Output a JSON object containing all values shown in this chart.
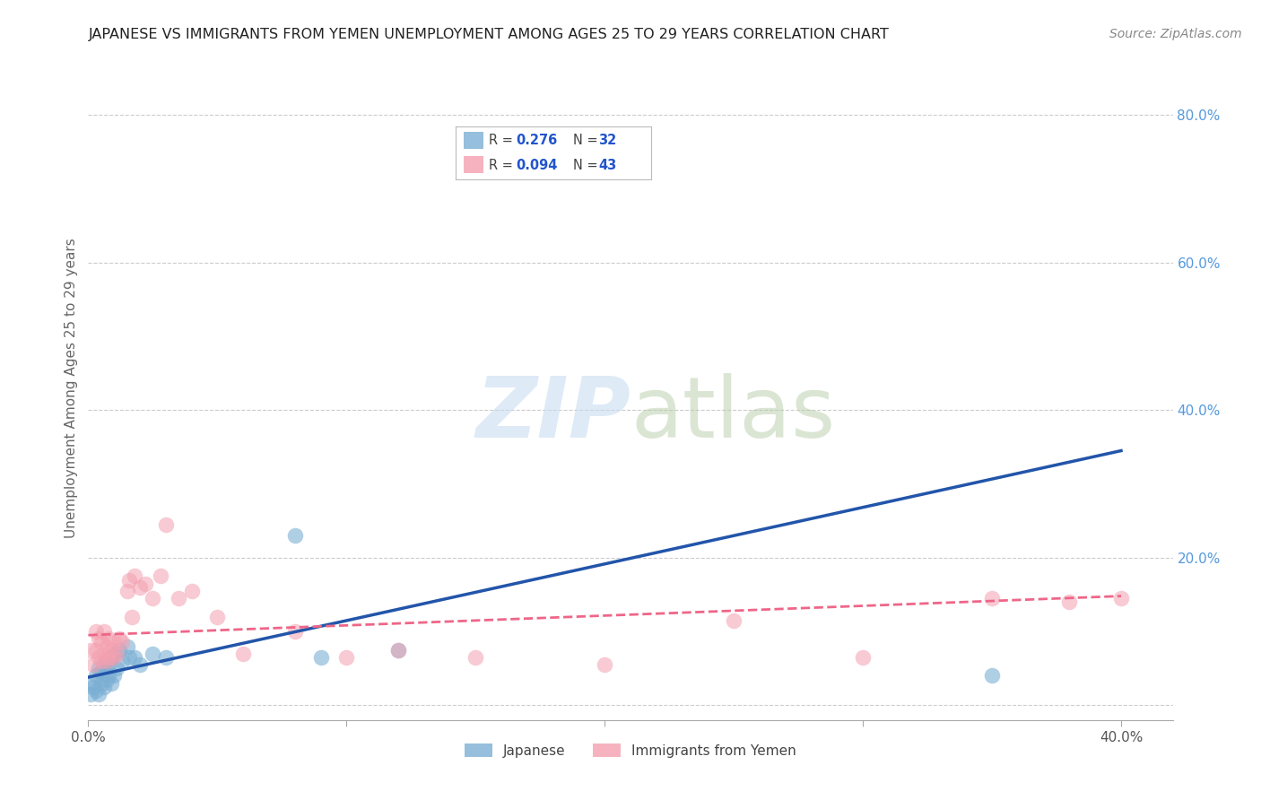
{
  "title": "JAPANESE VS IMMIGRANTS FROM YEMEN UNEMPLOYMENT AMONG AGES 25 TO 29 YEARS CORRELATION CHART",
  "source": "Source: ZipAtlas.com",
  "ylabel": "Unemployment Among Ages 25 to 29 years",
  "xlim": [
    0.0,
    0.42
  ],
  "ylim": [
    -0.02,
    0.88
  ],
  "xticks": [
    0.0,
    0.1,
    0.2,
    0.3,
    0.4
  ],
  "xtick_labels": [
    "0.0%",
    "",
    "",
    "",
    "40.0%"
  ],
  "yticks_right": [
    0.0,
    0.2,
    0.4,
    0.6,
    0.8
  ],
  "ytick_right_labels": [
    "",
    "20.0%",
    "40.0%",
    "60.0%",
    "80.0%"
  ],
  "legend_r1": "0.276",
  "legend_n1": "32",
  "legend_r2": "0.094",
  "legend_n2": "43",
  "blue_scatter_color": "#7BAFD4",
  "pink_scatter_color": "#F4A0B0",
  "blue_line_color": "#2255AA",
  "pink_line_color": "#EE6688",
  "background_color": "#FFFFFF",
  "grid_color": "#CCCCCC",
  "japanese_x": [
    0.001,
    0.002,
    0.002,
    0.003,
    0.003,
    0.004,
    0.004,
    0.005,
    0.005,
    0.006,
    0.006,
    0.007,
    0.007,
    0.008,
    0.008,
    0.009,
    0.009,
    0.01,
    0.01,
    0.011,
    0.012,
    0.013,
    0.015,
    0.016,
    0.018,
    0.02,
    0.025,
    0.03,
    0.08,
    0.09,
    0.12,
    0.35
  ],
  "japanese_y": [
    0.015,
    0.025,
    0.03,
    0.02,
    0.04,
    0.015,
    0.05,
    0.03,
    0.045,
    0.025,
    0.055,
    0.035,
    0.06,
    0.04,
    0.055,
    0.03,
    0.065,
    0.04,
    0.07,
    0.05,
    0.075,
    0.06,
    0.08,
    0.065,
    0.065,
    0.055,
    0.07,
    0.065,
    0.23,
    0.065,
    0.075,
    0.04
  ],
  "yemen_x": [
    0.001,
    0.002,
    0.003,
    0.003,
    0.004,
    0.004,
    0.005,
    0.005,
    0.006,
    0.006,
    0.007,
    0.007,
    0.008,
    0.008,
    0.009,
    0.01,
    0.01,
    0.011,
    0.012,
    0.013,
    0.015,
    0.016,
    0.017,
    0.018,
    0.02,
    0.022,
    0.025,
    0.028,
    0.03,
    0.035,
    0.04,
    0.05,
    0.06,
    0.08,
    0.1,
    0.12,
    0.15,
    0.2,
    0.25,
    0.3,
    0.35,
    0.38,
    0.4
  ],
  "yemen_y": [
    0.075,
    0.055,
    0.075,
    0.1,
    0.065,
    0.09,
    0.06,
    0.085,
    0.07,
    0.1,
    0.06,
    0.08,
    0.065,
    0.09,
    0.075,
    0.065,
    0.085,
    0.07,
    0.09,
    0.085,
    0.155,
    0.17,
    0.12,
    0.175,
    0.16,
    0.165,
    0.145,
    0.175,
    0.245,
    0.145,
    0.155,
    0.12,
    0.07,
    0.1,
    0.065,
    0.075,
    0.065,
    0.055,
    0.115,
    0.065,
    0.145,
    0.14,
    0.145
  ],
  "blue_line_x0": 0.0,
  "blue_line_y0": 0.038,
  "blue_line_x1": 0.4,
  "blue_line_y1": 0.345,
  "pink_line_x0": 0.0,
  "pink_line_y0": 0.095,
  "pink_line_x1": 0.4,
  "pink_line_y1": 0.148
}
